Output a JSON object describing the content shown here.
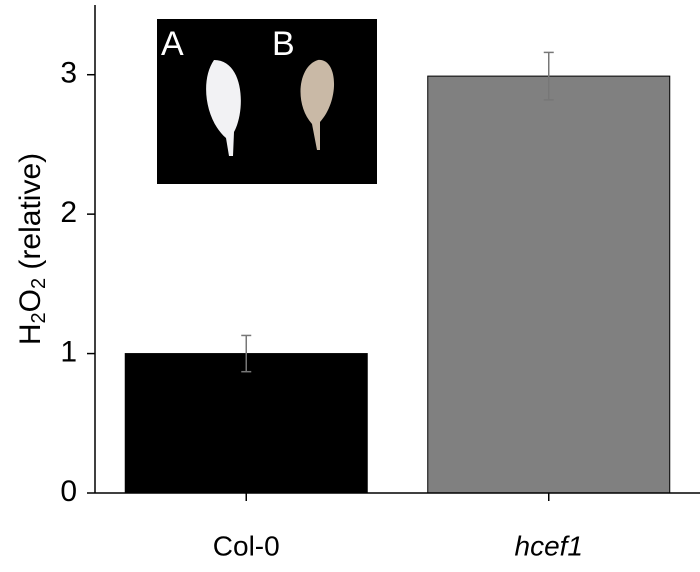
{
  "chart_data": {
    "type": "bar",
    "ylabel": "H2O2 (relative)",
    "categories": [
      "Col-0",
      "hcef1"
    ],
    "category_italic": [
      false,
      true
    ],
    "values": [
      1.0,
      2.99
    ],
    "errors": [
      0.13,
      0.17
    ],
    "colors": [
      "#000000",
      "#808080"
    ],
    "ylim": [
      0,
      3.5
    ],
    "yticks": [
      0,
      1,
      2,
      3
    ],
    "inset_labels": [
      "A",
      "B"
    ]
  }
}
